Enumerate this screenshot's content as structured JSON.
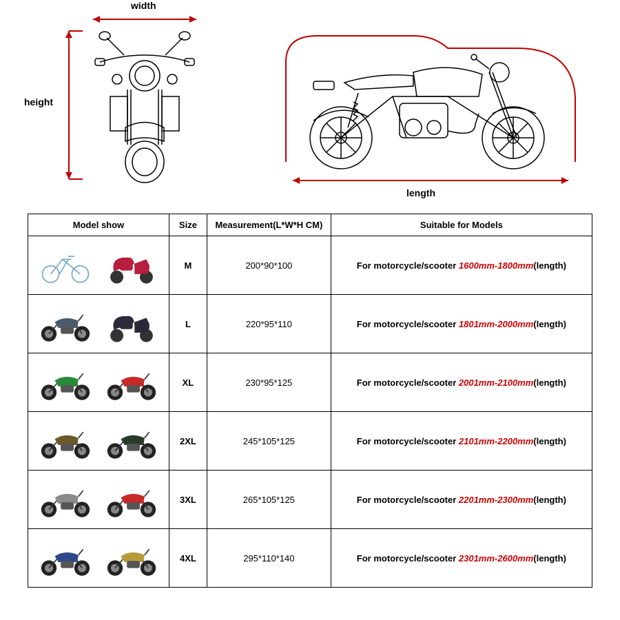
{
  "diagram": {
    "width_label": "width",
    "height_label": "height",
    "length_label": "length"
  },
  "table": {
    "headers": {
      "model": "Model show",
      "size": "Size",
      "measurement": "Measurement(L*W*H CM)",
      "suitable": "Suitable for Models"
    },
    "suit_prefix": "For motorcycle/scooter ",
    "suit_suffix": "(length)",
    "rows": [
      {
        "size": "M",
        "measurement": "200*90*100",
        "range": "1600mm-1800mm",
        "c1": "#7aa8c8",
        "c2": "#b81e3e"
      },
      {
        "size": "L",
        "measurement": "220*95*110",
        "range": "1801mm-2000mm",
        "c1": "#4a5a6a",
        "c2": "#2a2a3a"
      },
      {
        "size": "XL",
        "measurement": "230*95*125",
        "range": "2001mm-2100mm",
        "c1": "#2a8a3a",
        "c2": "#c82a2a"
      },
      {
        "size": "2XL",
        "measurement": "245*105*125",
        "range": "2101mm-2200mm",
        "c1": "#6a5a2a",
        "c2": "#2a3a2a"
      },
      {
        "size": "3XL",
        "measurement": "265*105*125",
        "range": "2201mm-2300mm",
        "c1": "#8a8a8a",
        "c2": "#c82a2a"
      },
      {
        "size": "4XL",
        "measurement": "295*110*140",
        "range": "2301mm-2600mm",
        "c1": "#2a4a8a",
        "c2": "#b89a3a"
      }
    ]
  },
  "colors": {
    "dim_arrow": "#c00000",
    "range_text": "#d00000",
    "border": "#000000"
  }
}
